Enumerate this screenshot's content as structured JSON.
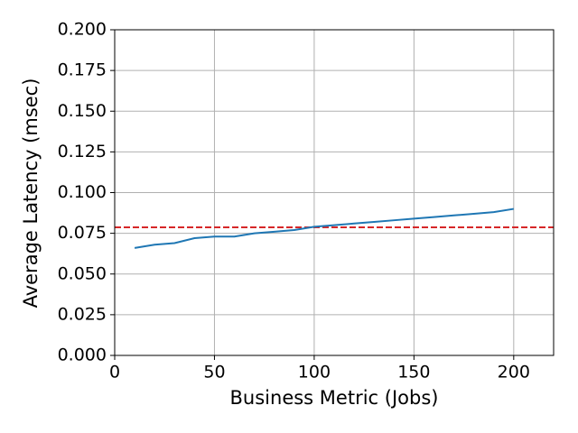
{
  "chart_data": {
    "type": "line",
    "x_label": "Business Metric (Jobs)",
    "y_label": "Average Latency (msec)",
    "x": [
      10,
      20,
      30,
      40,
      50,
      60,
      70,
      80,
      90,
      100,
      110,
      120,
      130,
      140,
      150,
      160,
      170,
      180,
      190,
      200
    ],
    "series": [
      {
        "color": "#1f77b4",
        "values": [
          0.066,
          0.068,
          0.069,
          0.072,
          0.073,
          0.073,
          0.075,
          0.076,
          0.077,
          0.079,
          0.08,
          0.081,
          0.082,
          0.083,
          0.084,
          0.085,
          0.086,
          0.087,
          0.088,
          0.09
        ]
      }
    ],
    "reference_line": {
      "value": 0.0787,
      "color": "#d62728",
      "style": "dashed"
    },
    "xlim": [
      0,
      220
    ],
    "xticks": [
      0,
      50,
      100,
      150,
      200
    ],
    "ylim": [
      0,
      0.2
    ],
    "yticks": [
      {
        "value": 0,
        "label": "0.000"
      },
      {
        "value": 0.025,
        "label": "0.025"
      },
      {
        "value": 0.05,
        "label": "0.050"
      },
      {
        "value": 0.075,
        "label": "0.075"
      },
      {
        "value": 0.1,
        "label": "0.100"
      },
      {
        "value": 0.125,
        "label": "0.125"
      },
      {
        "value": 0.15,
        "label": "0.150"
      },
      {
        "value": 0.175,
        "label": "0.175"
      },
      {
        "value": 0.2,
        "label": "0.200"
      }
    ],
    "grid": true
  }
}
